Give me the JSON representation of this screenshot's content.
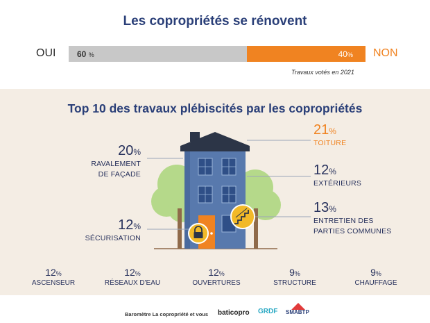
{
  "header": {
    "title": "Les copropriétés se rénovent"
  },
  "vote_bar": {
    "yes_label": "OUI",
    "no_label": "NON",
    "yes_value": "60",
    "no_value": "40",
    "pct_symbol": "%",
    "note": "Travaux votés en 2021",
    "yes_color": "#c8c8c8",
    "no_color": "#f08321"
  },
  "subtitle": "Top 10 des travaux plébiscités par les copropriétés",
  "chart_data": [
    {
      "type": "bar",
      "categories": [
        "OUI",
        "NON"
      ],
      "values": [
        60,
        40
      ],
      "title": "Les copropriétés se rénovent",
      "xlabel": "",
      "ylabel": "",
      "ylim": [
        0,
        100
      ]
    },
    {
      "type": "table",
      "title": "Top 10 des travaux plébiscités par les copropriétés",
      "categories": [
        "TOITURE",
        "RAVALEMENT DE FAÇADE",
        "EXTÉRIEURS",
        "ENTRETIEN DES PARTIES COMMUNES",
        "SÉCURISATION",
        "ASCENSEUR",
        "RÉSEAUX D'EAU",
        "OUVERTURES",
        "STRUCTURE",
        "CHAUFFAGE"
      ],
      "values": [
        21,
        20,
        12,
        13,
        12,
        12,
        12,
        12,
        9,
        9
      ]
    }
  ],
  "stats": {
    "toiture": {
      "value": "21",
      "label": "TOITURE"
    },
    "ravalement": {
      "value": "20",
      "label_line1": "RAVALEMENT",
      "label_line2": "DE FAÇADE"
    },
    "exterieurs": {
      "value": "12",
      "label": "EXTÉRIEURS"
    },
    "entretien": {
      "value": "13",
      "label_line1": "ENTRETIEN DES",
      "label_line2": "PARTIES COMMUNES"
    },
    "securisation": {
      "value": "12",
      "label": "SÉCURISATION"
    }
  },
  "bottom_stats": [
    {
      "value": "12",
      "label": "ASCENSEUR"
    },
    {
      "value": "12",
      "label": "RÉSEAUX D'EAU"
    },
    {
      "value": "12",
      "label": "OUVERTURES"
    },
    {
      "value": "9",
      "label": "STRUCTURE"
    },
    {
      "value": "9",
      "label": "CHAUFFAGE"
    }
  ],
  "footer": {
    "text": "Baromètre La copropriété et vous",
    "logo1": "baticopro",
    "logo2": "GRDF",
    "logo3": "SMABTP"
  },
  "colors": {
    "navy": "#2a3f78",
    "orange": "#f08321",
    "beige": "#f4ede4",
    "building": "#5879ad",
    "window": "#2f4f87",
    "roof": "#2c3547",
    "tree": "#b5d98a"
  }
}
